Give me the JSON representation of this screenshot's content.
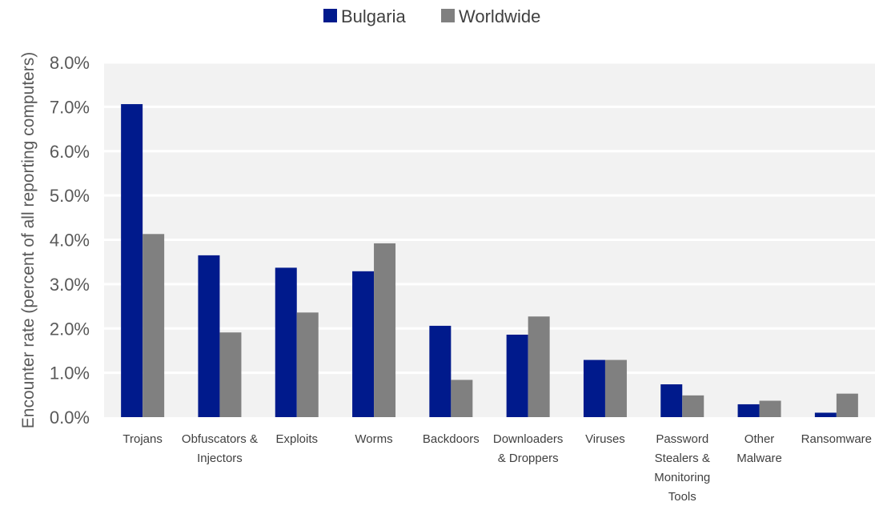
{
  "chart_data": {
    "type": "bar",
    "title": "",
    "xlabel": "",
    "ylabel": "Encounter rate (percent of all reporting computers)",
    "ylim": [
      0,
      8
    ],
    "yticks": [
      "0.0%",
      "1.0%",
      "2.0%",
      "3.0%",
      "4.0%",
      "5.0%",
      "6.0%",
      "7.0%",
      "8.0%"
    ],
    "grid": true,
    "legend_position": "top-center",
    "categories": [
      [
        "Trojans"
      ],
      [
        "Obfuscators &",
        "Injectors"
      ],
      [
        "Exploits"
      ],
      [
        "Worms"
      ],
      [
        "Backdoors"
      ],
      [
        "Downloaders",
        "& Droppers"
      ],
      [
        "Viruses"
      ],
      [
        "Password",
        "Stealers &",
        "Monitoring",
        "Tools"
      ],
      [
        "Other",
        "Malware"
      ],
      [
        "Ransomware"
      ]
    ],
    "series": [
      {
        "name": "Bulgaria",
        "color": "#001a8c",
        "values": [
          7.06,
          3.65,
          3.37,
          3.29,
          2.06,
          1.86,
          1.29,
          0.74,
          0.29,
          0.1
        ]
      },
      {
        "name": "Worldwide",
        "color": "#808080",
        "values": [
          4.13,
          1.91,
          2.36,
          3.92,
          0.84,
          2.27,
          1.29,
          0.49,
          0.37,
          0.53
        ]
      }
    ]
  }
}
